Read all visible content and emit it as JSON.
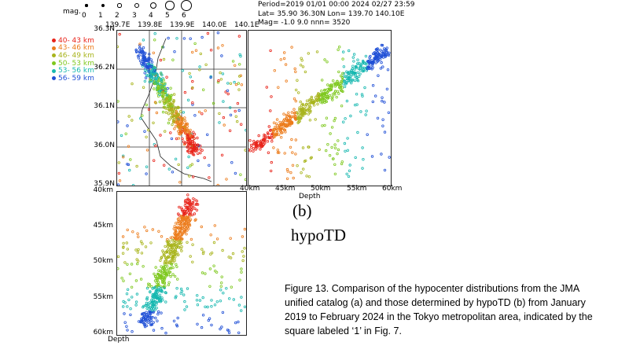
{
  "figure": {
    "mag_label": "mag.",
    "mag_values": [
      "0",
      "1",
      "2",
      "3",
      "4",
      "5",
      "6"
    ],
    "header_lines": [
      "Period=2019 01/01 00:00  2024 02/27 23:59",
      "Lat= 35.90 36.30N  Lon= 139.70 140.10E",
      "Mag= -1.0  9.0  nnn=   3520"
    ],
    "panel_label": "(b)",
    "method_label": "hypoTD",
    "caption": "Figure 13. Comparison of the hypocenter distributions from the JMA unified catalog (a) and those determined by hypoTD (b) from January 2019 to February 2024 in the Tokyo metropolitan area, indicated by the square labeled ‘1’ in Fig. 7."
  },
  "depth_legend": [
    {
      "label": "40- 43 km",
      "color": "#e8241a"
    },
    {
      "label": "43- 46 km",
      "color": "#ec7c1c"
    },
    {
      "label": "46- 49 km",
      "color": "#a8b41c"
    },
    {
      "label": "50- 53 km",
      "color": "#7ec81e"
    },
    {
      "label": "53- 56 km",
      "color": "#17b8b0"
    },
    {
      "label": "56- 59 km",
      "color": "#1f4fd6"
    }
  ],
  "chart_data": [
    {
      "type": "scatter",
      "panel": "map",
      "x_ticks": [
        "139.7E",
        "139.8E",
        "139.9E",
        "140.0E",
        "140.1E"
      ],
      "y_ticks": [
        "36.3N",
        "36.2N",
        "36.1N",
        "36.0N",
        "35.9N"
      ],
      "xlim": [
        139.7,
        140.1
      ],
      "ylim": [
        35.9,
        36.3
      ],
      "grid": true
    },
    {
      "type": "scatter",
      "panel": "depth-vs-longitude",
      "x_ticks": [
        "40km",
        "45km",
        "50km",
        "55km",
        "60km"
      ],
      "xlabel": "Depth",
      "xlim": [
        40,
        60
      ]
    },
    {
      "type": "scatter",
      "panel": "latitude-vs-depth",
      "y_ticks": [
        "40km",
        "45km",
        "50km",
        "55km",
        "60km"
      ],
      "ylabel": "Depth",
      "ylim": [
        40,
        60
      ]
    }
  ]
}
